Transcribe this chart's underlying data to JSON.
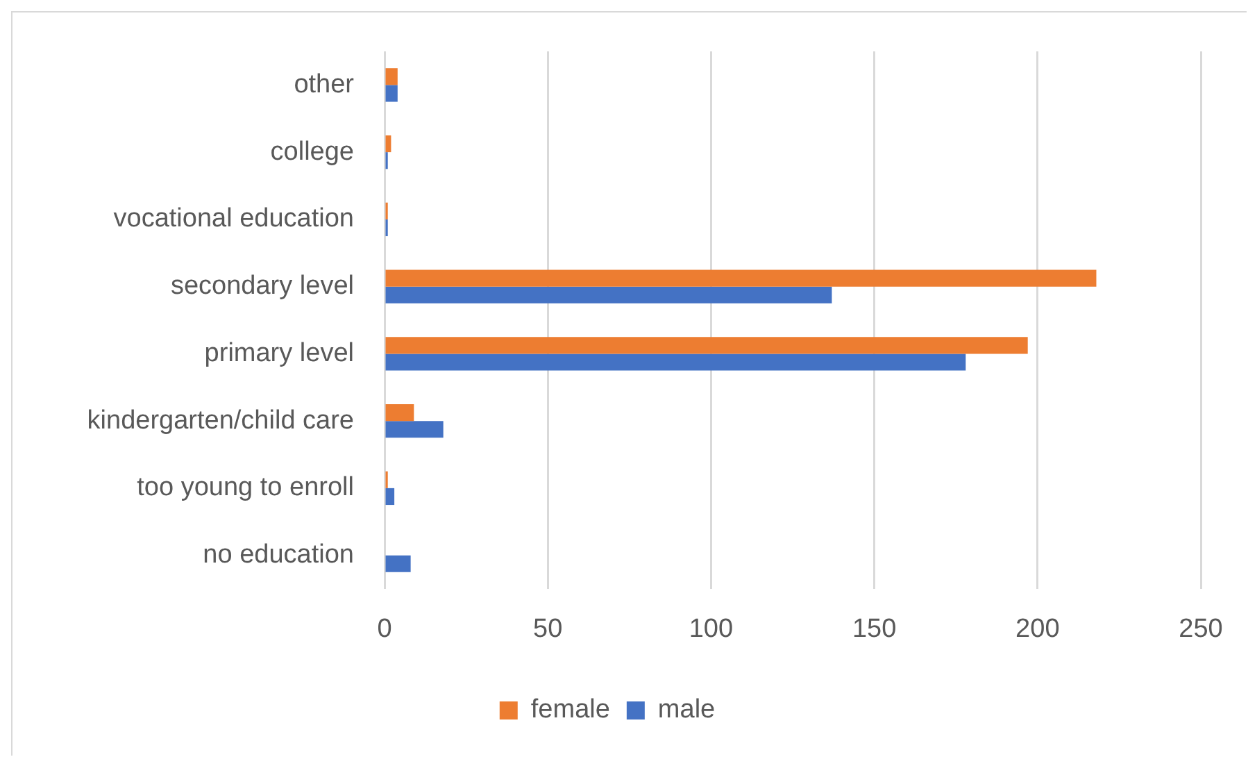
{
  "chart_data": {
    "type": "bar",
    "orientation": "horizontal",
    "categories": [
      "other",
      "college",
      "vocational education",
      "secondary level",
      "primary level",
      "kindergarten/child care",
      "too young to enroll",
      "no education"
    ],
    "series": [
      {
        "name": "female",
        "color": "#ed7d31",
        "values": [
          4,
          2,
          1,
          218,
          197,
          9,
          1,
          0
        ]
      },
      {
        "name": "male",
        "color": "#4472c4",
        "values": [
          4,
          1,
          1,
          137,
          178,
          18,
          3,
          8
        ]
      }
    ],
    "xlim": [
      0,
      250
    ],
    "xticks": [
      0,
      50,
      100,
      150,
      200,
      250
    ],
    "grid": "x",
    "legend": "bottom"
  }
}
